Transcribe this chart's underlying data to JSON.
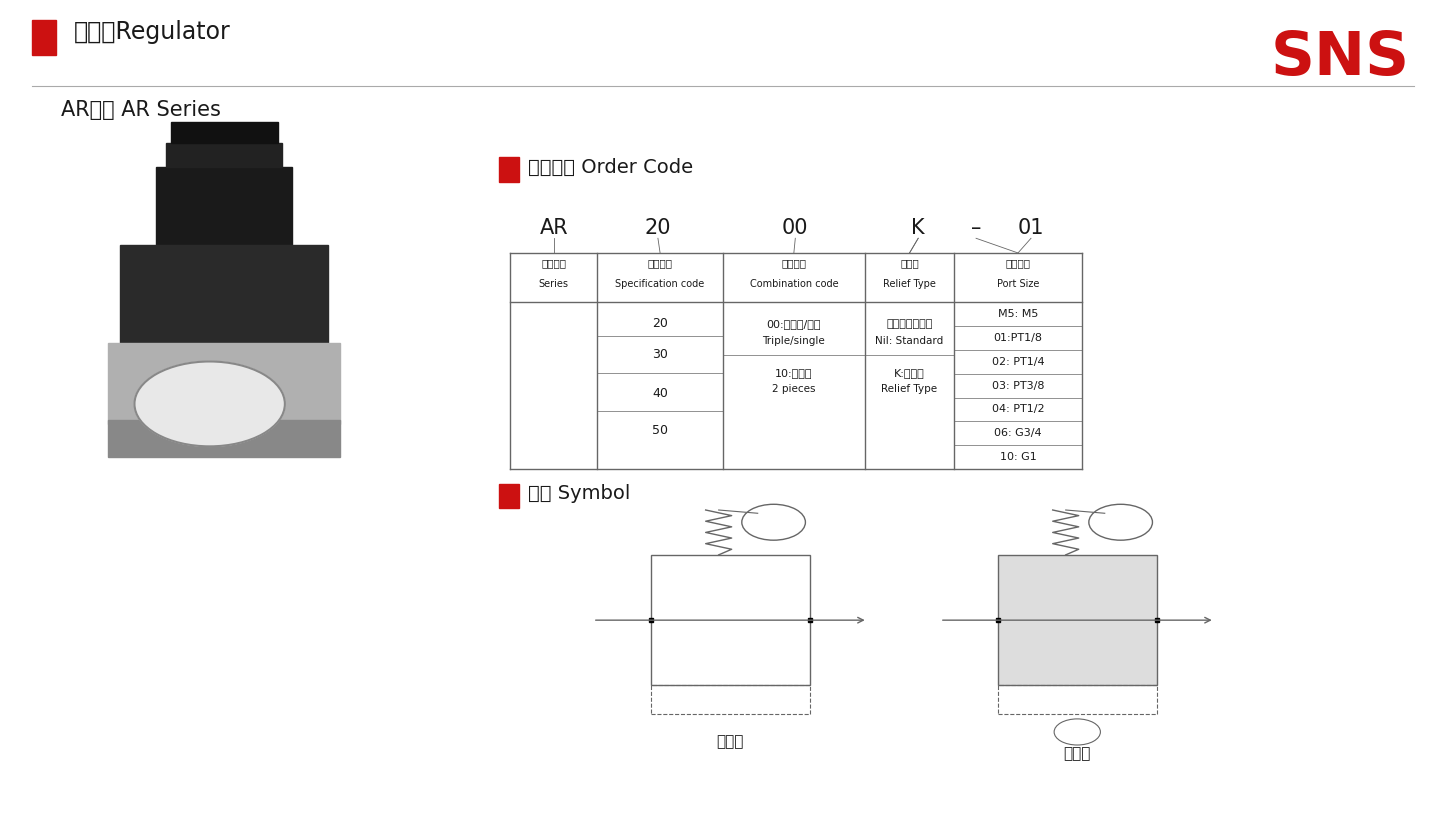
{
  "bg_color": "#ffffff",
  "red_color": "#cc1111",
  "sns_color": "#cc1111",
  "title1_cn": "调压阀Regulator",
  "subtitle": "AR系列 AR Series",
  "section1_title": "订货型号 Order Code",
  "section2_title": "符号 Symbol",
  "order_code_values": [
    "AR",
    "20",
    "00",
    "K",
    "–",
    "01"
  ],
  "col_header_cn": [
    "系列代号",
    "规格代号",
    "联件代号",
    "逆流型",
    "螺纹接口"
  ],
  "col_header_en": [
    "Series",
    "Specification code",
    "Combination code",
    "Relief Type",
    "Port Size"
  ],
  "spec_values": [
    "20",
    "30",
    "40",
    "50"
  ],
  "comb_cn1": "00:三联件/单件",
  "comb_en1": "Triple/single",
  "comb_cn2": "10:二联件",
  "comb_en2": "2 pieces",
  "relief_cn1": "无记号：标准型",
  "relief_en1": "Nil: Standard",
  "relief_cn2": "K:逆流型",
  "relief_en2": "Relief Type",
  "port_vals": [
    "M5: M5",
    "01:PT1/8",
    "02: PT1/4",
    "03: PT3/8",
    "04: PT1/2",
    "06: G3/4",
    "10: G1"
  ],
  "label_standard": "标准型",
  "label_relief": "逆流型",
  "line_color": "#666666",
  "text_color": "#1a1a1a"
}
